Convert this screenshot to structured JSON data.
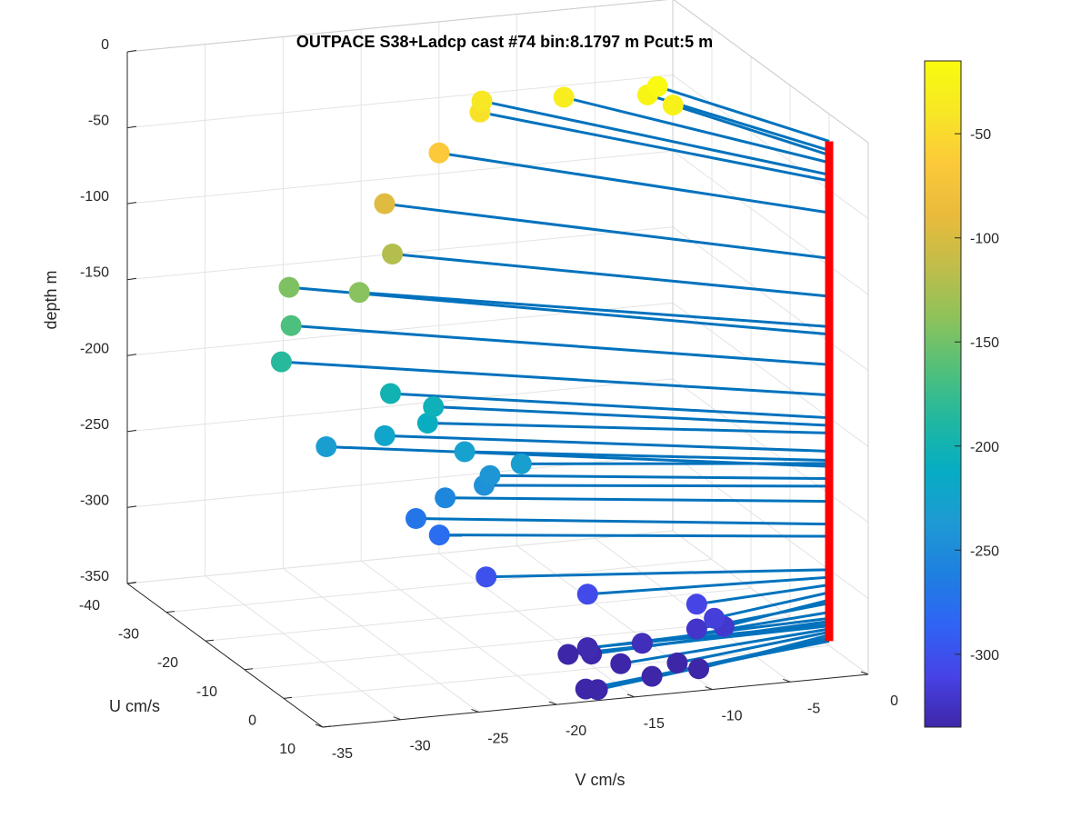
{
  "chart_data": {
    "type": "scatter",
    "title": "OUTPACE S38+Ladcp cast #74 bin:8.1797 m  Pcut:5 m",
    "xlabel": "V cm/s",
    "ylabel": "U cm/s",
    "zlabel": "depth m",
    "xlim": [
      -35,
      0
    ],
    "ylim": [
      -40,
      10
    ],
    "zlim": [
      -350,
      0
    ],
    "x_ticks": [
      -35,
      -30,
      -25,
      -20,
      -15,
      -10,
      -5,
      0
    ],
    "y_ticks": [
      -40,
      -30,
      -20,
      -10,
      0,
      10
    ],
    "z_ticks": [
      0,
      -50,
      -100,
      -150,
      -200,
      -250,
      -300,
      -350
    ],
    "grid": true,
    "colorbar": {
      "range": [
        -335,
        -15
      ],
      "ticks": [
        -50,
        -100,
        -150,
        -200,
        -250,
        -300
      ],
      "colormap": [
        "#3e26a8",
        "#4743e6",
        "#2f64f5",
        "#1e80e0",
        "#1e9ad4",
        "#06adc3",
        "#21b8a0",
        "#52c07a",
        "#8fc25a",
        "#c1bd4a",
        "#e9bb3c",
        "#fcc93a",
        "#f7e725",
        "#f9fb0e"
      ]
    },
    "stick_color": "#0072bd",
    "origin_line_color": "#ff0000",
    "points": [
      {
        "depth": -18,
        "v": -5.5,
        "u": -22.0
      },
      {
        "depth": -24,
        "v": -6.0,
        "u": -22.5
      },
      {
        "depth": -27,
        "v": -5.0,
        "u": -20.0
      },
      {
        "depth": -32,
        "v": -10.0,
        "u": -28.0
      },
      {
        "depth": -40,
        "v": -14.0,
        "u": -33.0
      },
      {
        "depth": -44,
        "v": -14.5,
        "u": -31.5
      },
      {
        "depth": -65,
        "v": -17.5,
        "u": -30.0
      },
      {
        "depth": -95,
        "v": -21.0,
        "u": -30.0
      },
      {
        "depth": -120,
        "v": -21.5,
        "u": -26.0
      },
      {
        "depth": -140,
        "v": -24.0,
        "u": -24.5
      },
      {
        "depth": -145,
        "v": -27.0,
        "u": -30.5
      },
      {
        "depth": -165,
        "v": -27.5,
        "u": -28.0
      },
      {
        "depth": -185,
        "v": -28.5,
        "u": -26.5
      },
      {
        "depth": -200,
        "v": -23.0,
        "u": -20.5
      },
      {
        "depth": -205,
        "v": -21.0,
        "u": -17.5
      },
      {
        "depth": -210,
        "v": -22.0,
        "u": -15.0
      },
      {
        "depth": -222,
        "v": -24.0,
        "u": -18.0
      },
      {
        "depth": -228,
        "v": -20.0,
        "u": -13.5
      },
      {
        "depth": -230,
        "v": -17.5,
        "u": -9.0
      },
      {
        "depth": -232,
        "v": -27.0,
        "u": -21.0
      },
      {
        "depth": -240,
        "v": -19.0,
        "u": -11.0
      },
      {
        "depth": -245,
        "v": -19.5,
        "u": -10.5
      },
      {
        "depth": -255,
        "v": -21.5,
        "u": -12.5
      },
      {
        "depth": -270,
        "v": -23.0,
        "u": -14.0
      },
      {
        "depth": -278,
        "v": -22.0,
        "u": -12.0
      },
      {
        "depth": -300,
        "v": -20.0,
        "u": -8.0
      },
      {
        "depth": -305,
        "v": -15.0,
        "u": -2.0
      },
      {
        "depth": -310,
        "v": -9.0,
        "u": 2.0
      },
      {
        "depth": -315,
        "v": -8.5,
        "u": 4.5
      },
      {
        "depth": -320,
        "v": -8.0,
        "u": 5.0
      },
      {
        "depth": -322,
        "v": -9.5,
        "u": 4.0
      },
      {
        "depth": -328,
        "v": -13.0,
        "u": 4.0
      },
      {
        "depth": -332,
        "v": -16.0,
        "u": 2.0
      },
      {
        "depth": -334,
        "v": -16.0,
        "u": 3.0
      },
      {
        "depth": -336,
        "v": -15.5,
        "u": 0.0
      },
      {
        "depth": -337,
        "v": -17.0,
        "u": 1.0
      },
      {
        "depth": -339,
        "v": -14.5,
        "u": 4.5
      },
      {
        "depth": -341,
        "v": -11.0,
        "u": 5.0
      },
      {
        "depth": -343,
        "v": -10.0,
        "u": 6.5
      },
      {
        "depth": -345,
        "v": -13.0,
        "u": 6.5
      },
      {
        "depth": -346,
        "v": -17.0,
        "u": 8.5
      },
      {
        "depth": -347,
        "v": -17.5,
        "u": 7.5
      }
    ]
  }
}
